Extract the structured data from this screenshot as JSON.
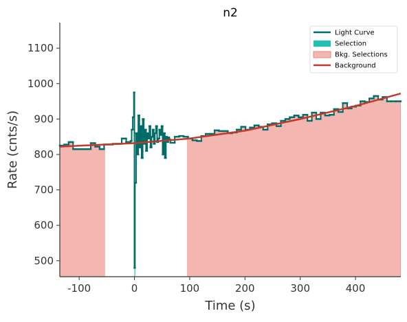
{
  "chart_data": {
    "type": "lightcurve",
    "title": "n2",
    "x_label": "Time (s)",
    "y_label": "Rate (cnts/s)",
    "xlim": [
      -135,
      482
    ],
    "ylim": [
      455,
      1172
    ],
    "xticks": [
      -100,
      0,
      100,
      200,
      300,
      400
    ],
    "yticks": [
      500,
      600,
      700,
      800,
      900,
      1000,
      1100
    ],
    "legend": "upper right",
    "light_curve": {
      "name": "Light Curve",
      "color": "#006d68",
      "bins": [
        -135,
        -127,
        -119,
        -111,
        -103,
        -95,
        -87,
        -79,
        -71,
        -63,
        -55,
        -47,
        -39,
        -31,
        -23,
        -15,
        -7,
        -5,
        -3,
        -1,
        0,
        1,
        3,
        5,
        7,
        9,
        11,
        13,
        15,
        17,
        19,
        21,
        23,
        25,
        27,
        29,
        31,
        33,
        35,
        37,
        39,
        41,
        43,
        45,
        47,
        49,
        51,
        53,
        55,
        57,
        59,
        61,
        63,
        65,
        73,
        81,
        89,
        97,
        105,
        113,
        121,
        129,
        137,
        145,
        153,
        161,
        169,
        177,
        185,
        193,
        201,
        209,
        217,
        225,
        233,
        241,
        249,
        257,
        265,
        273,
        281,
        289,
        297,
        305,
        313,
        321,
        329,
        337,
        345,
        353,
        361,
        369,
        377,
        385,
        393,
        401,
        409,
        417,
        425,
        433,
        441,
        449,
        457,
        465,
        473,
        481,
        482
      ],
      "values": [
        825,
        828,
        835,
        815,
        815,
        815,
        815,
        832,
        822,
        815,
        828,
        828,
        830,
        830,
        845,
        835,
        838,
        870,
        905,
        975,
        480,
        720,
        860,
        800,
        910,
        820,
        880,
        790,
        900,
        830,
        870,
        810,
        860,
        845,
        880,
        820,
        850,
        870,
        830,
        860,
        880,
        835,
        845,
        870,
        855,
        880,
        800,
        860,
        790,
        850,
        835,
        848,
        842,
        833,
        850,
        852,
        850,
        845,
        840,
        838,
        852,
        858,
        858,
        868,
        866,
        866,
        860,
        862,
        870,
        878,
        870,
        876,
        882,
        878,
        870,
        885,
        888,
        880,
        895,
        900,
        905,
        910,
        905,
        912,
        895,
        918,
        900,
        918,
        910,
        912,
        928,
        920,
        945,
        930,
        935,
        938,
        950,
        948,
        958,
        965,
        955,
        962,
        950,
        950,
        950,
        950
      ]
    },
    "selection": {
      "name": "Selection",
      "color": "#20c2b4",
      "range": [
        0,
        1.5
      ]
    },
    "bkg_selections": {
      "name": "Bkg. Selections",
      "color": "#f4b6b0",
      "edge": "#e8877d",
      "ranges": [
        [
          -135,
          -53
        ],
        [
          95,
          482
        ]
      ]
    },
    "background": {
      "name": "Background",
      "color": "#c0392b",
      "x": [
        -135,
        0,
        100,
        200,
        300,
        400,
        482
      ],
      "values": [
        822,
        832,
        845,
        867,
        900,
        937,
        972
      ]
    }
  }
}
